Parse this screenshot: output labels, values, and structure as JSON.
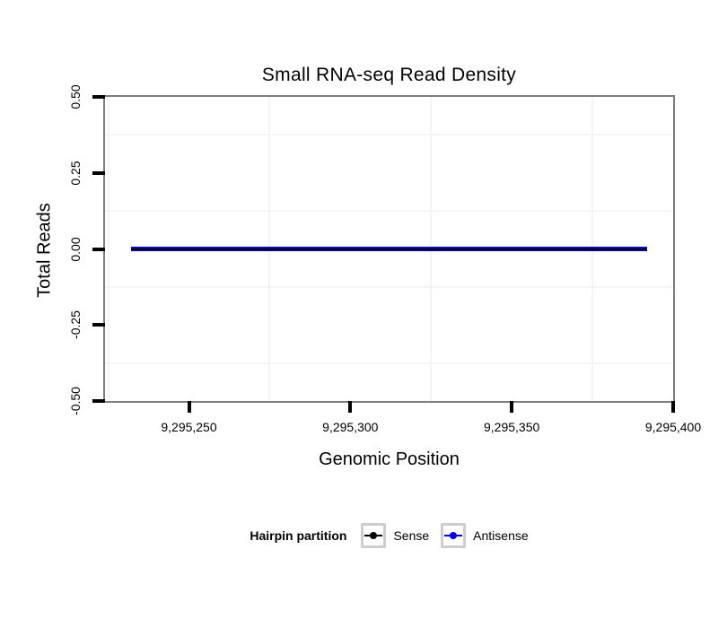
{
  "title": "Small RNA-seq Read Density",
  "x_axis": {
    "label": "Genomic Position",
    "ticks": [
      "9,295,250",
      "9,295,300",
      "9,295,350",
      "9,295,400"
    ]
  },
  "y_axis": {
    "label": "Total Reads",
    "ticks": [
      "0.50",
      "0.25",
      "0.00",
      "-0.25",
      "-0.50"
    ]
  },
  "legend": {
    "title": "Hairpin partition",
    "items": [
      {
        "label": "Sense",
        "color": "#000000"
      },
      {
        "label": "Antisense",
        "color": "#0000ee"
      }
    ]
  },
  "colors": {
    "panel_border": "#7d7d7d",
    "gridline": "#f4f4f4",
    "tick": "#000000",
    "sense": "#000000",
    "antisense": "#0000ee"
  },
  "chart_data": {
    "type": "line",
    "title": "Small RNA-seq Read Density",
    "xlabel": "Genomic Position",
    "ylabel": "Total Reads",
    "xlim": [
      9295224,
      9295400
    ],
    "ylim": [
      -0.5,
      0.5
    ],
    "x_ticks": [
      9295250,
      9295300,
      9295350,
      9295400
    ],
    "y_ticks": [
      0.5,
      0.25,
      0,
      -0.25,
      -0.5
    ],
    "grid": "minor-gridlines-only",
    "legend_position": "bottom",
    "legend_title": "Hairpin partition",
    "series": [
      {
        "name": "Sense",
        "color": "#000000",
        "x": [
          9295232,
          9295392
        ],
        "y": [
          0,
          0
        ]
      },
      {
        "name": "Antisense",
        "color": "#0000ee",
        "x": [
          9295232,
          9295392
        ],
        "y": [
          0,
          0
        ]
      }
    ]
  }
}
